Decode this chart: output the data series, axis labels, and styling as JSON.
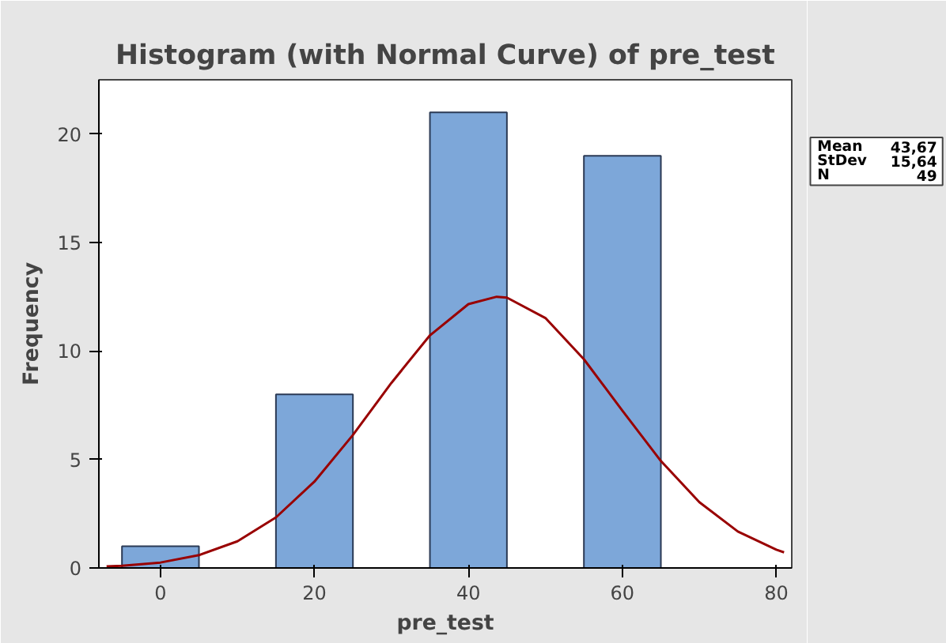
{
  "chart_data": {
    "type": "bar",
    "title": "Histogram (with Normal Curve) of pre_test",
    "xlabel": "pre_test",
    "ylabel": "Frequency",
    "x": [
      0,
      20,
      40,
      60
    ],
    "series": [
      {
        "color": "#7da7d9",
        "values": [
          1,
          8,
          21,
          19
        ]
      },
      {
        "type": "line",
        "color": "#990000",
        "x": [
          -7,
          -5,
          0,
          5,
          10,
          15,
          20,
          25,
          30,
          35,
          40,
          43.67,
          45,
          50,
          55,
          60,
          65,
          70,
          75,
          80,
          81
        ],
        "values": [
          0.07,
          0.1,
          0.25,
          0.59,
          1.23,
          2.33,
          3.98,
          6.13,
          8.53,
          10.72,
          12.16,
          12.5,
          12.46,
          11.52,
          9.62,
          7.25,
          4.93,
          3.03,
          1.68,
          0.84,
          0.72
        ]
      }
    ],
    "xlim": [
      -8,
      82
    ],
    "xticks": [
      0,
      20,
      40,
      60,
      80
    ],
    "ylim": [
      0,
      22.5
    ],
    "yticks": [
      0,
      5,
      10,
      15,
      20
    ],
    "grid": false,
    "annotations": [
      "Mean 43,67",
      "StDev 15,64",
      "N 49"
    ]
  }
}
